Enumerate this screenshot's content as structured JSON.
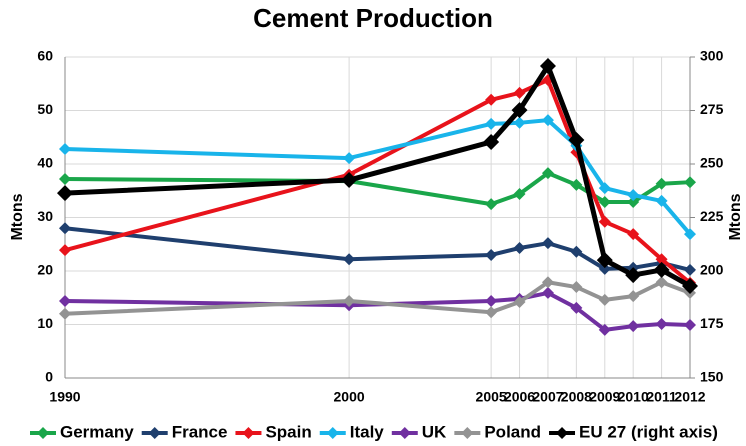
{
  "chart_data": {
    "type": "line",
    "title": "Cement Production",
    "ylabel": "Mtons",
    "y2label": "Mtons",
    "x": [
      1990,
      2000,
      2005,
      2006,
      2007,
      2008,
      2009,
      2010,
      2011,
      2012
    ],
    "xlim": [
      1990,
      2012
    ],
    "xticks": [
      1990,
      2000,
      2005,
      2006,
      2007,
      2008,
      2009,
      2010,
      2011,
      2012
    ],
    "ylim": [
      0,
      60
    ],
    "yticks": [
      0,
      10,
      20,
      30,
      40,
      50,
      60
    ],
    "y2lim": [
      150,
      300
    ],
    "y2ticks": [
      150,
      175,
      200,
      225,
      250,
      275,
      300
    ],
    "grid": true,
    "legend": "bottom",
    "series": [
      {
        "name": "Germany",
        "color": "#1aa64a",
        "values": [
          37.2,
          36.8,
          32.5,
          34.4,
          38.3,
          36.1,
          32.9,
          32.9,
          36.3,
          36.6
        ]
      },
      {
        "name": "France",
        "color": "#1f3f6e",
        "values": [
          28,
          22.2,
          23,
          24.3,
          25.2,
          23.6,
          20.4,
          20.6,
          21.5,
          20.2
        ]
      },
      {
        "name": "Spain",
        "color": "#e8131b",
        "values": [
          23.9,
          38,
          52,
          53.3,
          55.7,
          42.2,
          29.2,
          26.9,
          22.2,
          17.8
        ]
      },
      {
        "name": "Italy",
        "color": "#19b4ea",
        "values": [
          42.8,
          41.1,
          47.5,
          47.7,
          48.2,
          43.4,
          35.5,
          34.2,
          33.1,
          26.9
        ]
      },
      {
        "name": "UK",
        "color": "#7030a0",
        "values": [
          14.4,
          13.6,
          14.4,
          14.8,
          15.9,
          13.1,
          9,
          9.7,
          10.1,
          9.9
        ]
      },
      {
        "name": "Poland",
        "color": "#939393",
        "values": [
          12,
          14.4,
          12.3,
          14.2,
          17.9,
          17,
          14.6,
          15.3,
          17.9,
          15.9
        ]
      },
      {
        "name": "EU 27 (right axis)",
        "color": "#000000",
        "axis": "y2",
        "values": [
          236.4,
          242.5,
          260.3,
          275.2,
          295.8,
          261.2,
          205.1,
          198.1,
          200.5,
          193
        ]
      }
    ]
  }
}
